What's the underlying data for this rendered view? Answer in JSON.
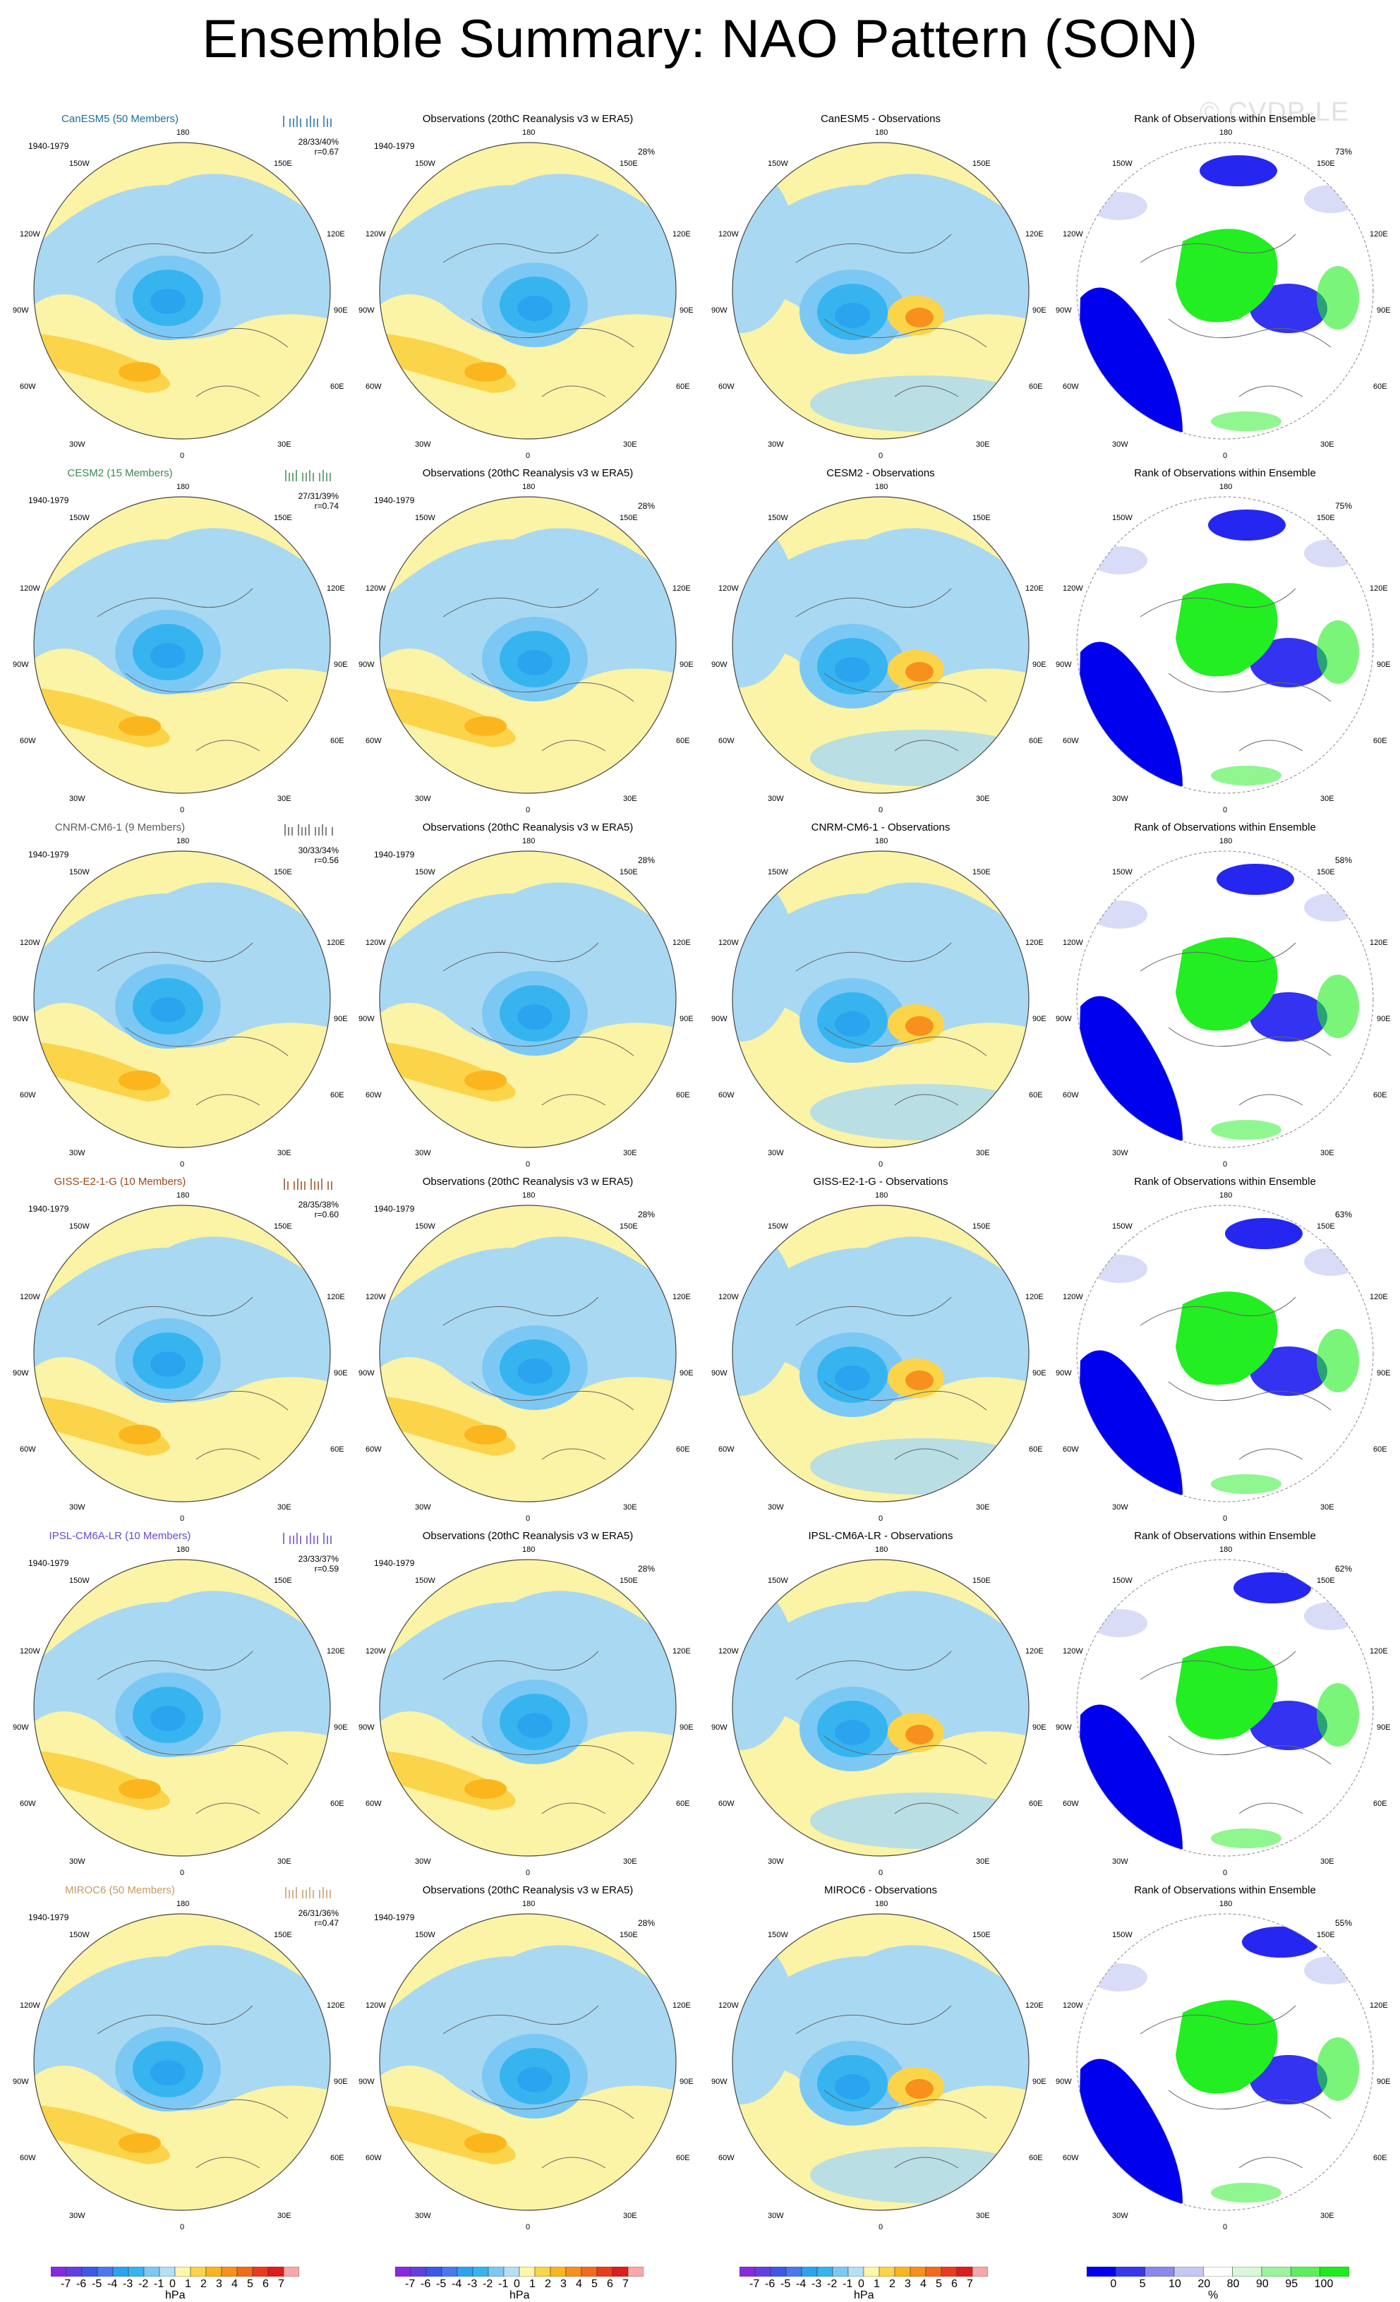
{
  "title": "Ensemble Summary: NAO Pattern (SON)",
  "watermark": "© CVDP-LE",
  "period": "1940-1979",
  "colors": {
    "neg_fill": "#a9d8f2",
    "pos_fill": "#fbf3a5",
    "blue": "#0000ee",
    "green": "#22ee22",
    "lavender": "#d9dcf7"
  },
  "models": [
    {
      "name": "CanESM5 (50 Members)",
      "short": "CanESM5",
      "color": "#1d6d9a",
      "stats": "28/33/40%",
      "r": "r=0.67",
      "rank_pct": "73%"
    },
    {
      "name": "CESM2 (15 Members)",
      "short": "CESM2",
      "color": "#3b8a52",
      "stats": "27/31/39%",
      "r": "r=0.74",
      "rank_pct": "75%"
    },
    {
      "name": "CNRM-CM6-1 (9 Members)",
      "short": "CNRM-CM6-1",
      "color": "#5a5a5a",
      "stats": "30/33/34%",
      "r": "r=0.56",
      "rank_pct": "58%"
    },
    {
      "name": "GISS-E2-1-G (10 Members)",
      "short": "GISS-E2-1-G",
      "color": "#9a4a1a",
      "stats": "28/35/38%",
      "r": "r=0.60",
      "rank_pct": "63%"
    },
    {
      "name": "IPSL-CM6A-LR (10 Members)",
      "short": "IPSL-CM6A-LR",
      "color": "#6a48d0",
      "stats": "23/33/37%",
      "r": "r=0.59",
      "rank_pct": "62%"
    },
    {
      "name": "MIROC6 (50 Members)",
      "short": "MIROC6",
      "color": "#c89860",
      "stats": "26/31/36%",
      "r": "r=0.47",
      "rank_pct": "55%"
    }
  ],
  "obs_title": "Observations (20thC Reanalysis v3 w ERA5)",
  "obs_pct": "28%",
  "diff_suffix": " - Observations",
  "rank_title": "Rank of Observations within Ensemble",
  "lon_labels": {
    "top": "180",
    "bottom": "0",
    "tl1": "150W",
    "tr1": "150E",
    "tl2": "120W",
    "tr2": "120E",
    "ml": "90W",
    "mr": "90E",
    "bl2": "60W",
    "br2": "60E",
    "bl1": "30W",
    "br1": "30E"
  },
  "colorbar_hpa": {
    "labels": [
      "-7",
      "-6",
      "-5",
      "-4",
      "-3",
      "-2",
      "-1",
      "0",
      "1",
      "2",
      "3",
      "4",
      "5",
      "6",
      "7"
    ],
    "unit": "hPa",
    "colors": [
      "#8a28e0",
      "#6240e0",
      "#3c58e8",
      "#4a78f0",
      "#2ba4f0",
      "#36b4f0",
      "#7cc8f4",
      "#b4e0f6",
      "#fff7a8",
      "#fcd44a",
      "#fbb61e",
      "#f7901c",
      "#f46a1c",
      "#ee3a1c",
      "#e01c1c",
      "#f8a8a8"
    ]
  },
  "colorbar_rank": {
    "labels": [
      "0",
      "5",
      "10",
      "20",
      "80",
      "90",
      "95",
      "100"
    ],
    "unit": "%",
    "colors": [
      "#0000ee",
      "#3838ee",
      "#8888ee",
      "#c4c8f4",
      "#ffffff",
      "#d8f8d8",
      "#9cf49c",
      "#5cee5c",
      "#1cee1c"
    ]
  }
}
